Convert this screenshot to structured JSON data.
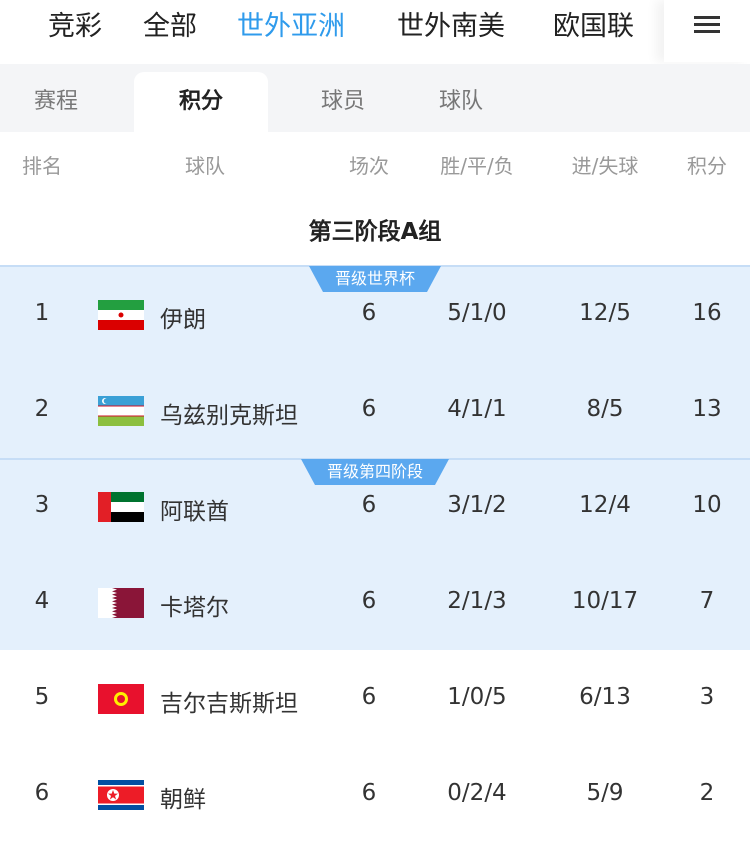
{
  "nav": {
    "items": [
      "竞彩",
      "全部",
      "世外亚洲",
      "世外南美",
      "欧国联"
    ],
    "active": 2,
    "menu_icon": "hamburger-icon"
  },
  "tabs": {
    "items": [
      "赛程",
      "积分",
      "球员",
      "球队"
    ],
    "active": 1
  },
  "table": {
    "headers": [
      "排名",
      "球队",
      "场次",
      "胜/平/负",
      "进/失球",
      "积分"
    ],
    "group_title": "第三阶段A组",
    "badges": {
      "qualify_world_cup": "晋级世界杯",
      "qualify_stage4": "晋级第四阶段"
    },
    "rows": [
      {
        "rank": "1",
        "team": "伊朗",
        "flag": "iran-flag-icon",
        "played": "6",
        "wdl": "5/1/0",
        "goals": "12/5",
        "points": "16"
      },
      {
        "rank": "2",
        "team": "乌兹别克斯坦",
        "flag": "uzbekistan-flag-icon",
        "played": "6",
        "wdl": "4/1/1",
        "goals": "8/5",
        "points": "13"
      },
      {
        "rank": "3",
        "team": "阿联酋",
        "flag": "uae-flag-icon",
        "played": "6",
        "wdl": "3/1/2",
        "goals": "12/4",
        "points": "10"
      },
      {
        "rank": "4",
        "team": "卡塔尔",
        "flag": "qatar-flag-icon",
        "played": "6",
        "wdl": "2/1/3",
        "goals": "10/17",
        "points": "7"
      },
      {
        "rank": "5",
        "team": "吉尔吉斯斯坦",
        "flag": "kyrgyzstan-flag-icon",
        "played": "6",
        "wdl": "1/0/5",
        "goals": "6/13",
        "points": "3"
      },
      {
        "rank": "6",
        "team": "朝鲜",
        "flag": "north-korea-flag-icon",
        "played": "6",
        "wdl": "0/2/4",
        "goals": "5/9",
        "points": "2"
      }
    ]
  },
  "colors": {
    "accent": "#2f9bec",
    "highlight_row": "#e4f0fc",
    "badge": "#5ba8ef"
  }
}
